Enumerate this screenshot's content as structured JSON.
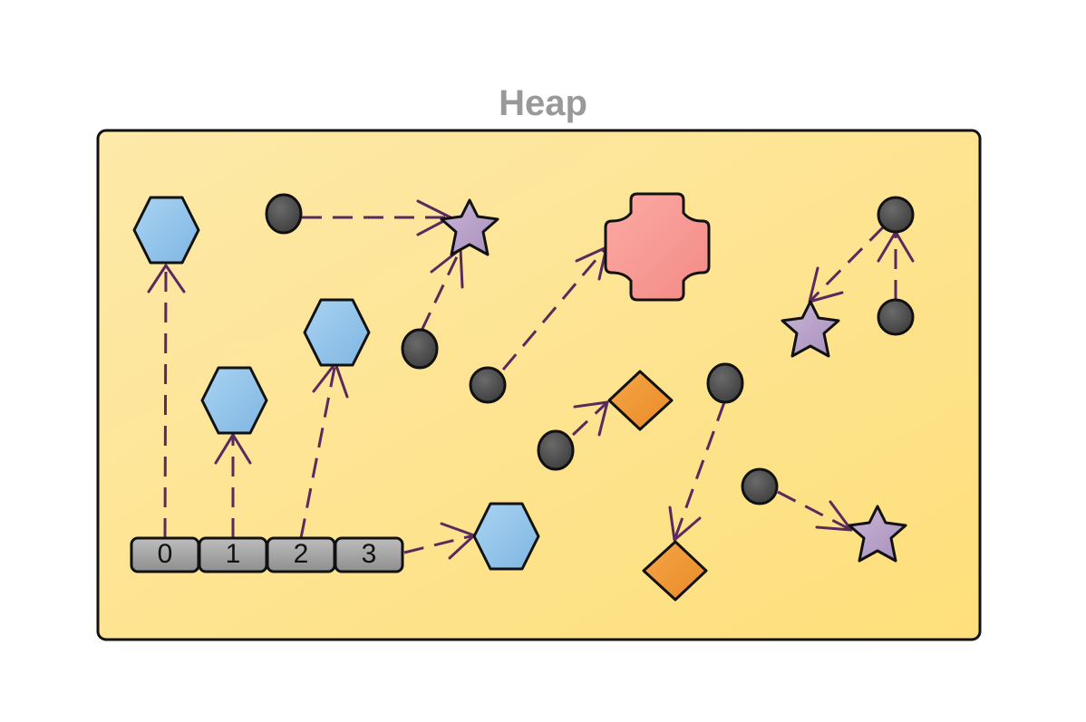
{
  "title": "Heap",
  "array_cells": [
    "0",
    "1",
    "2",
    "3"
  ],
  "colors": {
    "title": "#999999",
    "heap_light": "#fde9a9",
    "heap_dark": "#fedf7a",
    "hexagon": "#8fc4ea",
    "star": "#b9a3c9",
    "cross": "#f79a95",
    "diamond": "#f0962f",
    "dot": "#505050",
    "cell": "#a5a5a5",
    "arrow": "#5a2a5e"
  }
}
